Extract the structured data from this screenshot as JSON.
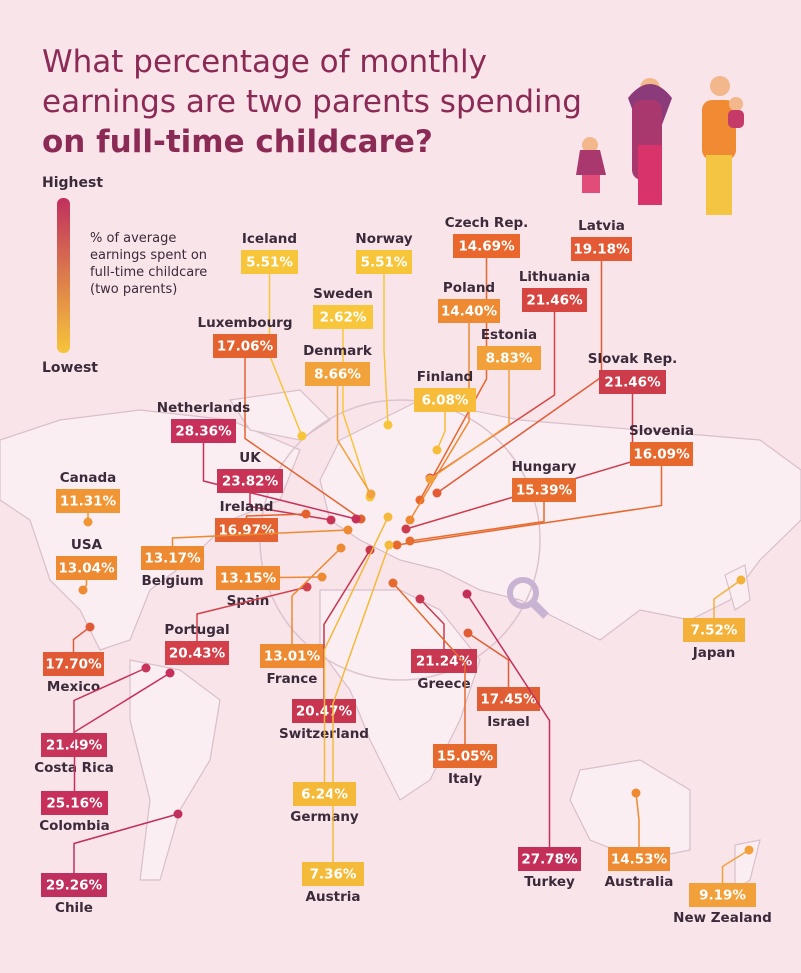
{
  "title": {
    "regular": "What percentage of monthly earnings are two parents spending",
    "bold": "on full-time childcare?"
  },
  "legend": {
    "high": "Highest",
    "low": "Lowest",
    "description": "% of average earnings spent on full-time childcare (two parents)",
    "gradient": [
      "#c0305e",
      "#f7c53a"
    ]
  },
  "countries": [
    {
      "name": "Iceland",
      "label": "5.51%",
      "color": "#f7c53a"
    },
    {
      "name": "Norway",
      "label": "5.51%",
      "color": "#f7c53a"
    },
    {
      "name": "Czech Rep.",
      "label": "14.69%",
      "color": "#e9662c"
    },
    {
      "name": "Latvia",
      "label": "19.18%",
      "color": "#e35a34"
    },
    {
      "name": "Sweden",
      "label": "2.62%",
      "color": "#f8c63b"
    },
    {
      "name": "Poland",
      "label": "14.40%",
      "color": "#ee8a31"
    },
    {
      "name": "Lithuania",
      "label": "21.46%",
      "color": "#d6453f"
    },
    {
      "name": "Luxembourg",
      "label": "17.06%",
      "color": "#e4622f"
    },
    {
      "name": "Denmark",
      "label": "8.66%",
      "color": "#f2a23a"
    },
    {
      "name": "Estonia",
      "label": "8.83%",
      "color": "#f2a03a"
    },
    {
      "name": "Finland",
      "label": "6.08%",
      "color": "#f6bc3a"
    },
    {
      "name": "Slovak Rep.",
      "label": "21.46%",
      "color": "#cc3c4b"
    },
    {
      "name": "Netherlands",
      "label": "28.36%",
      "color": "#c7305a"
    },
    {
      "name": "Slovenia",
      "label": "16.09%",
      "color": "#e6682d"
    },
    {
      "name": "UK",
      "label": "23.82%",
      "color": "#c93456"
    },
    {
      "name": "Hungary",
      "label": "15.39%",
      "color": "#e86c2d"
    },
    {
      "name": "Canada",
      "label": "11.31%",
      "color": "#f19634"
    },
    {
      "name": "Ireland",
      "label": "16.97%",
      "color": "#e4622f"
    },
    {
      "name": "USA",
      "label": "13.04%",
      "color": "#ee8a31"
    },
    {
      "name": "Belgium",
      "label": "13.17%",
      "color": "#ee8a31"
    },
    {
      "name": "Spain",
      "label": "13.15%",
      "color": "#ee8a31"
    },
    {
      "name": "Japan",
      "label": "7.52%",
      "color": "#f4b13a"
    },
    {
      "name": "Portugal",
      "label": "20.43%",
      "color": "#d4404a"
    },
    {
      "name": "France",
      "label": "13.01%",
      "color": "#ee8a31"
    },
    {
      "name": "Mexico",
      "label": "17.70%",
      "color": "#e05a36"
    },
    {
      "name": "Greece",
      "label": "21.24%",
      "color": "#c93850"
    },
    {
      "name": "Switzerland",
      "label": "20.47%",
      "color": "#c8354f"
    },
    {
      "name": "Israel",
      "label": "17.45%",
      "color": "#e15d34"
    },
    {
      "name": "Costa Rica",
      "label": "21.49%",
      "color": "#c7345a"
    },
    {
      "name": "Italy",
      "label": "15.05%",
      "color": "#e66a2e"
    },
    {
      "name": "Colombia",
      "label": "25.16%",
      "color": "#c7305a"
    },
    {
      "name": "Germany",
      "label": "6.24%",
      "color": "#f5b93a"
    },
    {
      "name": "Australia",
      "label": "14.53%",
      "color": "#ee8a31"
    },
    {
      "name": "Turkey",
      "label": "27.78%",
      "color": "#c42f5a"
    },
    {
      "name": "Chile",
      "label": "29.26%",
      "color": "#c0305e"
    },
    {
      "name": "Austria",
      "label": "7.36%",
      "color": "#f4bb3a"
    },
    {
      "name": "New Zealand",
      "label": "9.19%",
      "color": "#f2a03a"
    }
  ]
}
